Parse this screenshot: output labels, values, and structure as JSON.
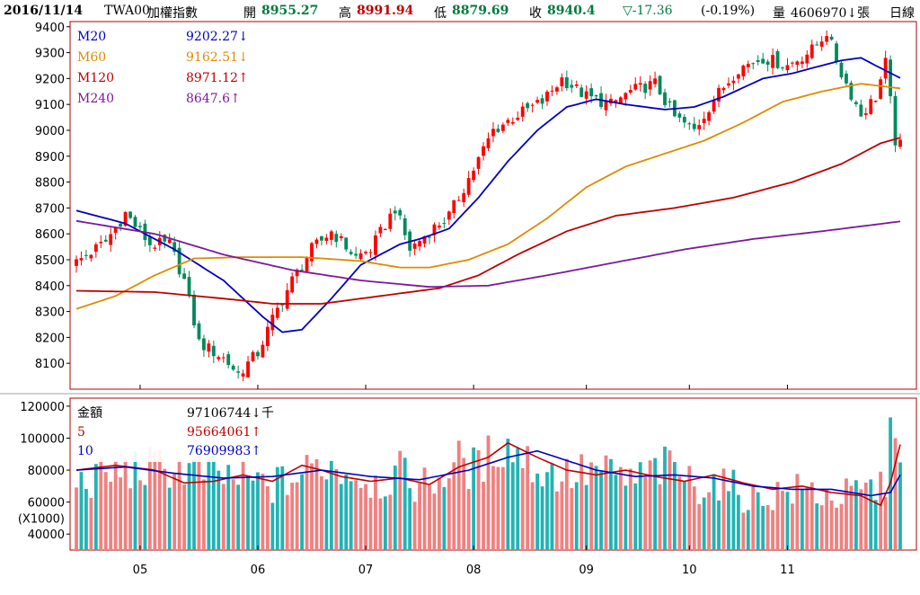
{
  "header": {
    "date": "2016/11/14",
    "symbol": "TWA00",
    "name": "加權指數",
    "open_label": "開",
    "open": "8955.27",
    "high_label": "高",
    "high": "8991.94",
    "low_label": "低",
    "low": "8879.69",
    "close_label": "收",
    "close": "8940.4",
    "change": "▽-17.36",
    "change_pct": "(-0.19%)",
    "volume_label": "量",
    "volume": "4606970↓張",
    "period": "日線"
  },
  "price_legend": [
    {
      "name": "M20",
      "value": "9202.27↓",
      "color": "#0000c0"
    },
    {
      "name": "M60",
      "value": "9162.51↓",
      "color": "#e08a00"
    },
    {
      "name": "M120",
      "value": "8971.12↑",
      "color": "#c00000"
    },
    {
      "name": "M240",
      "value": "8647.6↑",
      "color": "#7a1a9a"
    }
  ],
  "volume_legend": [
    {
      "name": "金額",
      "value": "97106744↓千",
      "color": "#000000"
    },
    {
      "name": "5",
      "value": "95664061↑",
      "color": "#c00000"
    },
    {
      "name": "10",
      "value": "76909983↑",
      "color": "#0000c0"
    }
  ],
  "colors": {
    "up": "#ff0000",
    "down": "#008a5a",
    "vol_up": "#f08080",
    "vol_down": "#22b3b3",
    "frame": "#b00000"
  },
  "chart_data": [
    {
      "type": "candlestick",
      "title": "TWA00 加權指數 日線",
      "y_ticks": [
        9400,
        9300,
        9200,
        9100,
        9000,
        8900,
        8800,
        8700,
        8600,
        8500,
        8400,
        8300,
        8200,
        8100
      ],
      "ylim": [
        8000,
        9420
      ],
      "x_labels": [
        "05",
        "06",
        "07",
        "08",
        "09",
        "10",
        "11"
      ],
      "x_label_positions": [
        13,
        37,
        59,
        81,
        104,
        125,
        145
      ],
      "n_bars": 156,
      "close_anchors": [
        [
          0,
          8490
        ],
        [
          6,
          8570
        ],
        [
          10,
          8680
        ],
        [
          15,
          8560
        ],
        [
          19,
          8560
        ],
        [
          22,
          8420
        ],
        [
          25,
          8180
        ],
        [
          30,
          8120
        ],
        [
          33,
          8060
        ],
        [
          37,
          8140
        ],
        [
          40,
          8270
        ],
        [
          44,
          8420
        ],
        [
          48,
          8540
        ],
        [
          52,
          8610
        ],
        [
          57,
          8510
        ],
        [
          60,
          8540
        ],
        [
          65,
          8700
        ],
        [
          68,
          8540
        ],
        [
          72,
          8610
        ],
        [
          76,
          8670
        ],
        [
          81,
          8850
        ],
        [
          85,
          9000
        ],
        [
          90,
          9060
        ],
        [
          95,
          9110
        ],
        [
          99,
          9200
        ],
        [
          104,
          9130
        ],
        [
          109,
          9100
        ],
        [
          113,
          9150
        ],
        [
          118,
          9180
        ],
        [
          122,
          9050
        ],
        [
          126,
          9000
        ],
        [
          130,
          9120
        ],
        [
          135,
          9240
        ],
        [
          140,
          9280
        ],
        [
          145,
          9250
        ],
        [
          150,
          9310
        ],
        [
          153,
          9380
        ],
        [
          156,
          9220
        ],
        [
          160,
          9060
        ],
        [
          163,
          9130
        ],
        [
          165,
          9260
        ],
        [
          167,
          8960
        ],
        [
          168,
          8940
        ]
      ],
      "series": [
        {
          "name": "M20",
          "anchors": [
            [
              0,
              8690
            ],
            [
              10,
              8640
            ],
            [
              20,
              8540
            ],
            [
              30,
              8420
            ],
            [
              38,
              8280
            ],
            [
              42,
              8220
            ],
            [
              46,
              8230
            ],
            [
              52,
              8350
            ],
            [
              58,
              8480
            ],
            [
              62,
              8520
            ],
            [
              66,
              8560
            ],
            [
              70,
              8580
            ],
            [
              76,
              8620
            ],
            [
              82,
              8740
            ],
            [
              88,
              8880
            ],
            [
              94,
              9000
            ],
            [
              100,
              9090
            ],
            [
              106,
              9120
            ],
            [
              112,
              9100
            ],
            [
              120,
              9080
            ],
            [
              126,
              9090
            ],
            [
              132,
              9130
            ],
            [
              140,
              9200
            ],
            [
              146,
              9220
            ],
            [
              150,
              9240
            ],
            [
              156,
              9270
            ],
            [
              160,
              9280
            ],
            [
              163,
              9250
            ],
            [
              168,
              9202
            ]
          ]
        },
        {
          "name": "M60",
          "anchors": [
            [
              0,
              8310
            ],
            [
              8,
              8360
            ],
            [
              16,
              8440
            ],
            [
              24,
              8505
            ],
            [
              34,
              8510
            ],
            [
              46,
              8510
            ],
            [
              58,
              8495
            ],
            [
              66,
              8470
            ],
            [
              72,
              8470
            ],
            [
              80,
              8500
            ],
            [
              88,
              8560
            ],
            [
              96,
              8660
            ],
            [
              104,
              8780
            ],
            [
              112,
              8860
            ],
            [
              120,
              8910
            ],
            [
              128,
              8960
            ],
            [
              136,
              9030
            ],
            [
              144,
              9110
            ],
            [
              152,
              9150
            ],
            [
              160,
              9180
            ],
            [
              168,
              9162
            ]
          ]
        },
        {
          "name": "M120",
          "anchors": [
            [
              0,
              8380
            ],
            [
              16,
              8375
            ],
            [
              30,
              8350
            ],
            [
              40,
              8330
            ],
            [
              50,
              8330
            ],
            [
              62,
              8360
            ],
            [
              74,
              8390
            ],
            [
              82,
              8440
            ],
            [
              90,
              8520
            ],
            [
              100,
              8610
            ],
            [
              110,
              8670
            ],
            [
              122,
              8700
            ],
            [
              134,
              8740
            ],
            [
              146,
              8800
            ],
            [
              156,
              8870
            ],
            [
              164,
              8950
            ],
            [
              168,
              8971
            ]
          ]
        },
        {
          "name": "M240",
          "anchors": [
            [
              0,
              8650
            ],
            [
              16,
              8600
            ],
            [
              30,
              8520
            ],
            [
              44,
              8460
            ],
            [
              58,
              8420
            ],
            [
              72,
              8395
            ],
            [
              84,
              8400
            ],
            [
              96,
              8440
            ],
            [
              110,
              8490
            ],
            [
              124,
              8540
            ],
            [
              138,
              8580
            ],
            [
              152,
              8610
            ],
            [
              168,
              8648
            ]
          ]
        }
      ]
    },
    {
      "type": "bar",
      "title": "金額",
      "ylabel": "(X1000)",
      "y_ticks": [
        120000,
        100000,
        80000,
        60000,
        40000
      ],
      "ylim": [
        30000,
        125000
      ],
      "value_anchors": [
        [
          0,
          72000
        ],
        [
          10,
          80000
        ],
        [
          20,
          82000
        ],
        [
          30,
          76000
        ],
        [
          40,
          70000
        ],
        [
          45,
          75000
        ],
        [
          50,
          85000
        ],
        [
          55,
          80000
        ],
        [
          58,
          76000
        ],
        [
          62,
          72000
        ],
        [
          66,
          78000
        ],
        [
          70,
          70000
        ],
        [
          74,
          75000
        ],
        [
          78,
          85000
        ],
        [
          82,
          80000
        ],
        [
          86,
          96000
        ],
        [
          90,
          92000
        ],
        [
          94,
          80000
        ],
        [
          98,
          78000
        ],
        [
          102,
          77000
        ],
        [
          106,
          80000
        ],
        [
          110,
          76000
        ],
        [
          114,
          73000
        ],
        [
          118,
          80000
        ],
        [
          122,
          82000
        ],
        [
          126,
          70000
        ],
        [
          130,
          73000
        ],
        [
          134,
          68000
        ],
        [
          138,
          62000
        ],
        [
          142,
          65000
        ],
        [
          146,
          67000
        ],
        [
          150,
          67000
        ],
        [
          154,
          63000
        ],
        [
          158,
          64000
        ],
        [
          162,
          68000
        ],
        [
          165,
          72000
        ],
        [
          167,
          120000
        ],
        [
          168,
          97000
        ]
      ],
      "series": [
        {
          "name": "5",
          "anchors": [
            [
              0,
              80000
            ],
            [
              8,
              83000
            ],
            [
              16,
              80000
            ],
            [
              22,
              72000
            ],
            [
              28,
              73000
            ],
            [
              34,
              77000
            ],
            [
              40,
              73000
            ],
            [
              46,
              83000
            ],
            [
              50,
              80000
            ],
            [
              54,
              76000
            ],
            [
              60,
              73000
            ],
            [
              66,
              75000
            ],
            [
              72,
              71000
            ],
            [
              78,
              82000
            ],
            [
              84,
              88000
            ],
            [
              88,
              97000
            ],
            [
              94,
              88000
            ],
            [
              100,
              80000
            ],
            [
              106,
              77000
            ],
            [
              112,
              80000
            ],
            [
              118,
              76000
            ],
            [
              124,
              73000
            ],
            [
              130,
              77000
            ],
            [
              136,
              72000
            ],
            [
              142,
              68000
            ],
            [
              148,
              70000
            ],
            [
              154,
              66000
            ],
            [
              160,
              64000
            ],
            [
              164,
              58000
            ],
            [
              166,
              72000
            ],
            [
              168,
              96000
            ]
          ]
        },
        {
          "name": "10",
          "anchors": [
            [
              0,
              80000
            ],
            [
              10,
              82000
            ],
            [
              20,
              78000
            ],
            [
              30,
              75000
            ],
            [
              40,
              76000
            ],
            [
              50,
              80000
            ],
            [
              60,
              76000
            ],
            [
              70,
              74000
            ],
            [
              80,
              80000
            ],
            [
              88,
              88000
            ],
            [
              94,
              92000
            ],
            [
              100,
              86000
            ],
            [
              106,
              80000
            ],
            [
              114,
              76000
            ],
            [
              122,
              77000
            ],
            [
              130,
              75000
            ],
            [
              138,
              70000
            ],
            [
              146,
              68000
            ],
            [
              154,
              68000
            ],
            [
              162,
              64000
            ],
            [
              166,
              66000
            ],
            [
              168,
              77000
            ]
          ]
        }
      ]
    }
  ]
}
